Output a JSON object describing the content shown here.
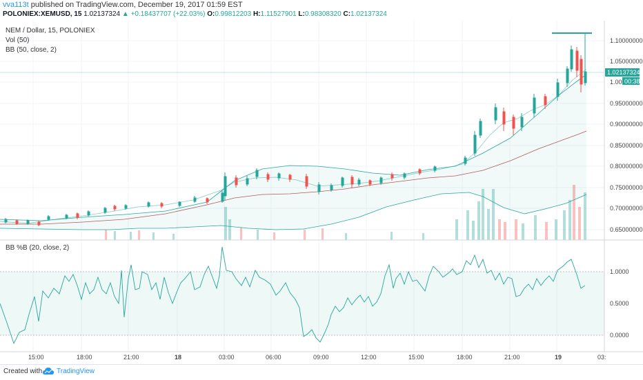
{
  "header": {
    "author": "vva113t",
    "published_text": "published on TradingView.com, December 19, 2017 01:59 EST",
    "symbol": "POLONIEX:XEMUSD, 15",
    "last": "1.02137324",
    "arrow": "▲",
    "change": "+0.18437707 (+22.03%)",
    "o_label": "O:",
    "o": "0.99812203",
    "h_label": "H:",
    "h": "1.11527901",
    "l_label": "L:",
    "l": "0.98308320",
    "c_label": "C:",
    "c": "1.02137324"
  },
  "pane_main": {
    "legend": [
      "NEM / Dollar, 15, POLONIEX",
      "Vol (50)",
      "BB (50, close, 2)"
    ],
    "price_ticks": [
      "1.10000000",
      "1.05000000",
      "1.000",
      "0.95000000",
      "0.90000000",
      "0.85000000",
      "0.80000000",
      "0.75000000",
      "0.70000000",
      "0.65000000"
    ],
    "last_price_label": "1.02137324",
    "countdown_label": "00:38"
  },
  "pane_indicator": {
    "legend": "BB %B (20, close, 2)",
    "ticks": [
      "1.0000",
      "0.5000",
      "0.0000"
    ]
  },
  "time_axis": {
    "labels": [
      "15:00",
      "18:00",
      "21:00",
      "18",
      "03:00",
      "06:00",
      "09:00",
      "12:00",
      "15:00",
      "18:00",
      "21:00",
      "19",
      "03:"
    ]
  },
  "colors": {
    "up": "#26a69a",
    "down": "#ef5350",
    "bb_upper_lower": "#26a69a",
    "bb_basis": "#b05a5a",
    "grid": "#f0f3fa",
    "accent": "#2196f3"
  },
  "footer": {
    "created_with": "Created with",
    "brand": "TradingView",
    "icon": "tradingview-cloud-icon"
  }
}
